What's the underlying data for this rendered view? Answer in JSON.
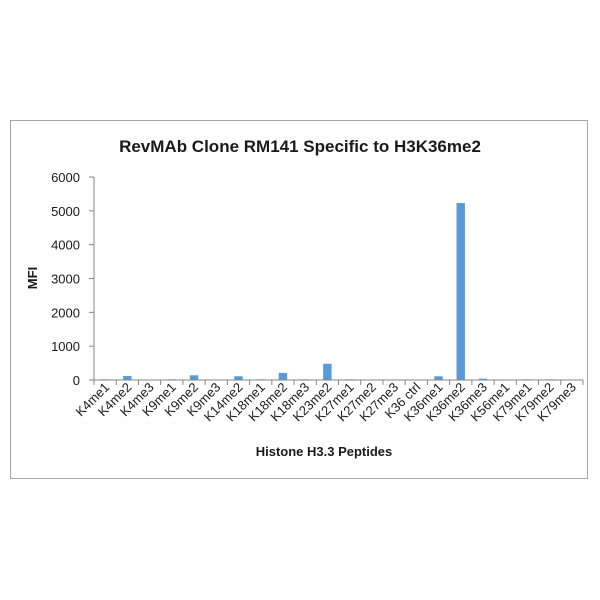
{
  "chart_data": {
    "type": "bar",
    "title": "RevMAb Clone RM141 Specific to H3K36me2",
    "xlabel": "Histone H3.3 Peptides",
    "ylabel": "MFI",
    "ylim": [
      0,
      6000
    ],
    "yticks": [
      0,
      1000,
      2000,
      3000,
      4000,
      5000,
      6000
    ],
    "grid": false,
    "legend": "none",
    "bar_color": "#5b9bd5",
    "categories": [
      "K4me1",
      "K4me2",
      "K4me3",
      "K9me1",
      "K9me2",
      "K9me3",
      "K14me2",
      "K18me1",
      "K18me2",
      "K18me3",
      "K23me2",
      "K27me1",
      "K27me2",
      "K27me3",
      "K36 ctrl",
      "K36me1",
      "K36me2",
      "K36me3",
      "K56me1",
      "K79me1",
      "K79me2",
      "K79me3"
    ],
    "values": [
      20,
      120,
      15,
      20,
      140,
      15,
      110,
      20,
      210,
      20,
      480,
      20,
      15,
      15,
      15,
      110,
      5230,
      40,
      15,
      20,
      20,
      15
    ]
  }
}
